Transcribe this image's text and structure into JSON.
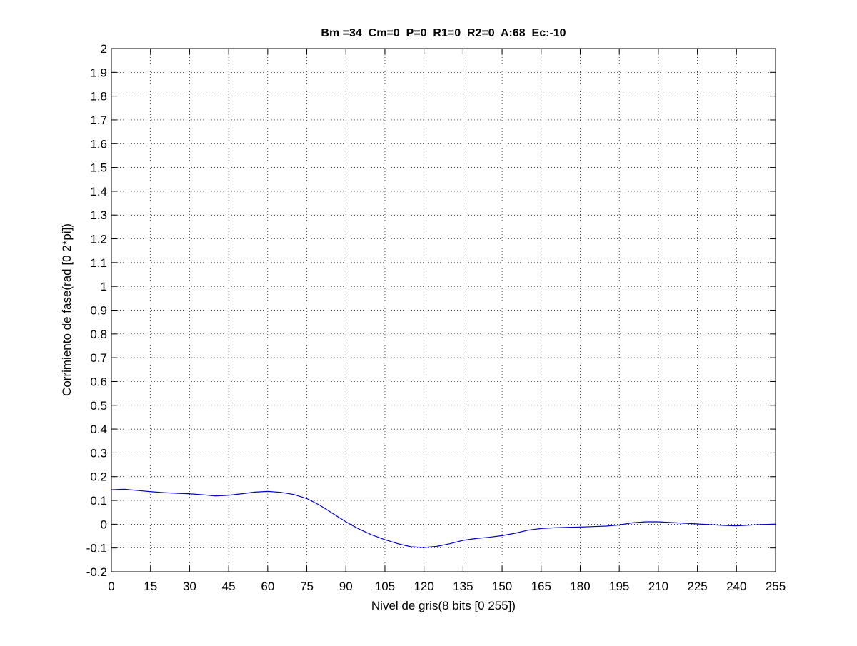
{
  "chart_data": {
    "type": "line",
    "title": "Bm =34  Cm=0  P=0  R1=0  R2=0  A:68  Ec:-10",
    "xlabel": "Nivel de gris(8 bits [0 255])",
    "ylabel": "Corrimiento de fase(rad [0 2*pi])",
    "xlim": [
      0,
      255
    ],
    "ylim": [
      -0.2,
      2
    ],
    "xticks": [
      0,
      15,
      30,
      45,
      60,
      75,
      90,
      105,
      120,
      135,
      150,
      165,
      180,
      195,
      210,
      225,
      240,
      255
    ],
    "yticks": [
      -0.2,
      -0.1,
      0,
      0.1,
      0.2,
      0.3,
      0.4,
      0.5,
      0.6,
      0.7,
      0.8,
      0.9,
      1,
      1.1,
      1.2,
      1.3,
      1.4,
      1.5,
      1.6,
      1.7,
      1.8,
      1.9,
      2
    ],
    "ytick_labels": [
      "-0.2",
      "-0.1",
      "0",
      "0.1",
      "0.2",
      "0.3",
      "0.4",
      "0.5",
      "0.6",
      "0.7",
      "0.8",
      "0.9",
      "1",
      "1.1",
      "1.2",
      "1.3",
      "1.4",
      "1.5",
      "1.6",
      "1.7",
      "1.8",
      "1.9",
      "2"
    ],
    "grid": true,
    "line_color": "#0000cc",
    "series": [
      {
        "x": [
          0,
          5,
          10,
          15,
          20,
          25,
          30,
          35,
          40,
          45,
          50,
          55,
          60,
          65,
          70,
          75,
          80,
          85,
          90,
          95,
          100,
          105,
          110,
          115,
          120,
          125,
          130,
          135,
          140,
          145,
          150,
          155,
          160,
          165,
          170,
          175,
          180,
          185,
          190,
          195,
          200,
          205,
          210,
          215,
          220,
          225,
          230,
          235,
          240,
          245,
          250,
          255
        ],
        "y": [
          0.145,
          0.147,
          0.142,
          0.137,
          0.133,
          0.13,
          0.128,
          0.124,
          0.119,
          0.122,
          0.128,
          0.135,
          0.138,
          0.134,
          0.125,
          0.108,
          0.08,
          0.045,
          0.01,
          -0.02,
          -0.045,
          -0.065,
          -0.082,
          -0.095,
          -0.098,
          -0.093,
          -0.082,
          -0.068,
          -0.06,
          -0.055,
          -0.048,
          -0.038,
          -0.025,
          -0.018,
          -0.015,
          -0.013,
          -0.012,
          -0.01,
          -0.008,
          -0.003,
          0.006,
          0.01,
          0.01,
          0.007,
          0.004,
          0.001,
          -0.002,
          -0.005,
          -0.007,
          -0.004,
          -0.001,
          0.0
        ]
      }
    ]
  }
}
